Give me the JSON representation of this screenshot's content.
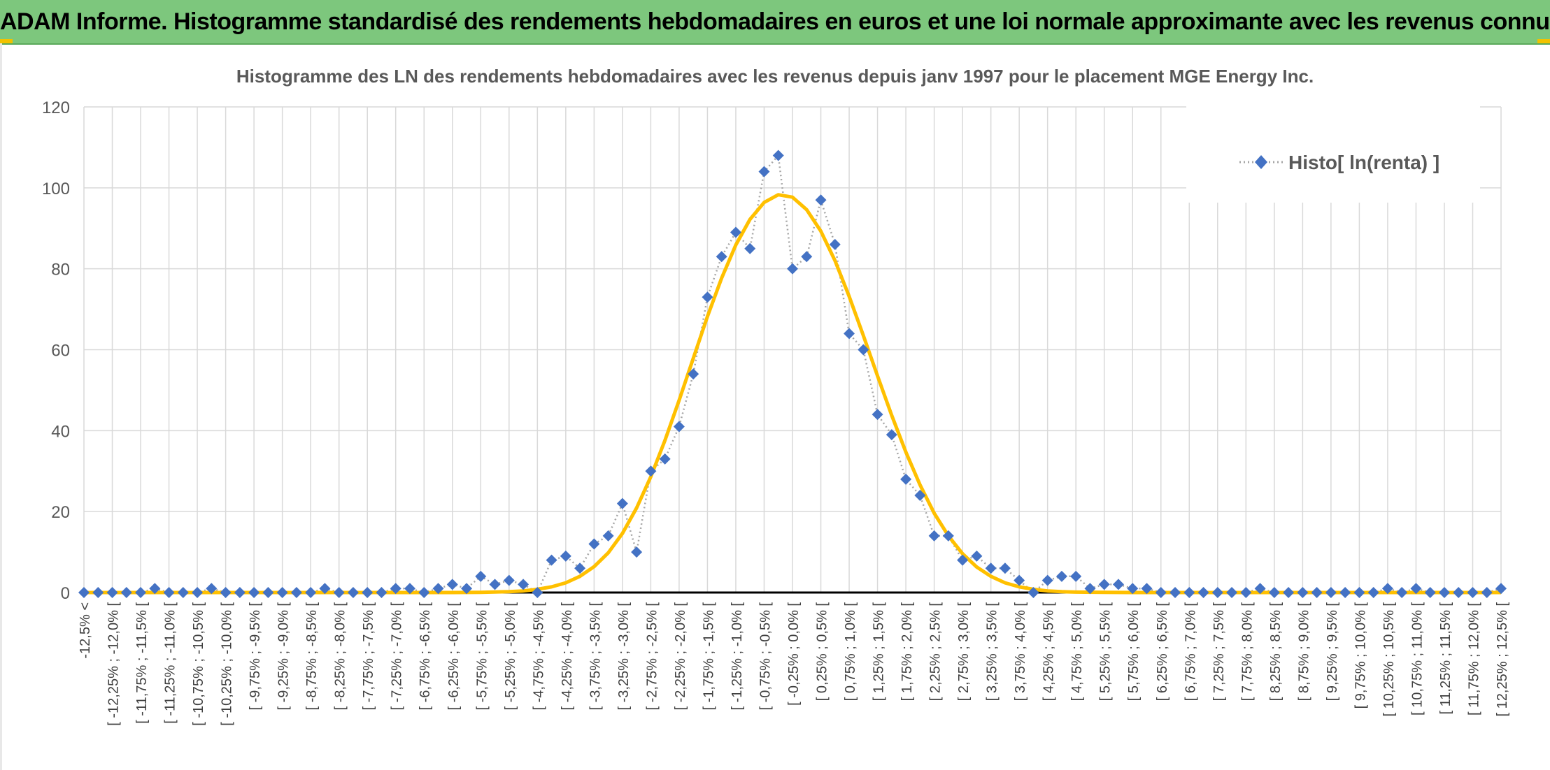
{
  "banner": {
    "title": "ADAM Informe. Histogramme standardisé des rendements hebdomadaires en euros et une loi normale approximante avec les revenus connus distribués"
  },
  "colors": {
    "banner_bg": "#7dc77d",
    "accent": "#f2c200",
    "series_marker": "#4472c4",
    "series_line": "#a6a6a6",
    "normal_curve": "#ffc000",
    "grid": "#d9d9d9"
  },
  "chart_data": {
    "type": "line",
    "title": "Histogramme des LN des rendements hebdomadaires avec les revenus depuis janv 1997 pour le placement MGE Energy Inc.",
    "xlabel": "",
    "ylabel": "",
    "ylim": [
      0,
      120
    ],
    "yticks": [
      0,
      20,
      40,
      60,
      80,
      100,
      120
    ],
    "grid": true,
    "legend": {
      "position": "top-right",
      "entries": [
        "Histo[ ln(renta) ]"
      ]
    },
    "categories": [
      "-12,5% <",
      "[ -12,25% ; -12,0% [",
      "[ -11,75% ; -11,5% [",
      "[ -11,25% ; -11,0% [",
      "[ -10,75% ; -10,5% [",
      "[ -10,25% ; -10,0% [",
      "[ -9,75% ; -9,5% [",
      "[ -9,25% ; -9,0% [",
      "[ -8,75% ; -8,5% [",
      "[ -8,25% ; -8,0% [",
      "[ -7,75% ; -7,5% [",
      "[ -7,25% ; -7,0% [",
      "[ -6,75% ; -6,5% [",
      "[ -6,25% ; -6,0% [",
      "[ -5,75% ; -5,5% [",
      "[ -5,25% ; -5,0% [",
      "[ -4,75% ; -4,5% [",
      "[ -4,25% ; -4,0% [",
      "[ -3,75% ; -3,5% [",
      "[ -3,25% ; -3,0% [",
      "[ -2,75% ; -2,5% [",
      "[ -2,25% ; -2,0% [",
      "[ -1,75% ; -1,5% [",
      "[ -1,25% ; -1,0% [",
      "[ -0,75% ; -0,5% [",
      "[ -0,25% ; 0,0% [",
      "[ 0,25% ; 0,5% [",
      "[ 0,75% ; 1,0% [",
      "[ 1,25% ; 1,5% [",
      "[ 1,75% ; 2,0% [",
      "[ 2,25% ; 2,5% [",
      "[ 2,75% ; 3,0% [",
      "[ 3,25% ; 3,5% [",
      "[ 3,75% ; 4,0% [",
      "[ 4,25% ; 4,5% [",
      "[ 4,75% ; 5,0% [",
      "[ 5,25% ; 5,5% [",
      "[ 5,75% ; 6,0% [",
      "[ 6,25% ; 6,5% [",
      "[ 6,75% ; 7,0% [",
      "[ 7,25% ; 7,5% [",
      "[ 7,75% ; 8,0% [",
      "[ 8,25% ; 8,5% [",
      "[ 8,75% ; 9,0% [",
      "[ 9,25% ; 9,5% [",
      "[ 9,75% ; 10,0% [",
      "[ 10,25% ; 10,5% [",
      "[ 10,75% ; 11,0% [",
      "[ 11,25% ; 11,5% [",
      "[ 11,75% ; 12,0% [",
      "[ 12,25% ; 12,5% ["
    ],
    "series": [
      {
        "name": "Histo[ ln(renta) ]",
        "marker": "diamond",
        "x": [
          -12.5,
          -12.25,
          -12.0,
          -11.75,
          -11.5,
          -11.25,
          -11.0,
          -10.75,
          -10.5,
          -10.25,
          -10.0,
          -9.75,
          -9.5,
          -9.25,
          -9.0,
          -8.75,
          -8.5,
          -8.25,
          -8.0,
          -7.75,
          -7.5,
          -7.25,
          -7.0,
          -6.75,
          -6.5,
          -6.25,
          -6.0,
          -5.75,
          -5.5,
          -5.25,
          -5.0,
          -4.75,
          -4.5,
          -4.25,
          -4.0,
          -3.75,
          -3.5,
          -3.25,
          -3.0,
          -2.75,
          -2.5,
          -2.25,
          -2.0,
          -1.75,
          -1.5,
          -1.25,
          -1.0,
          -0.75,
          -0.5,
          -0.25,
          0.0,
          0.25,
          0.5,
          0.75,
          1.0,
          1.25,
          1.5,
          1.75,
          2.0,
          2.25,
          2.5,
          2.75,
          3.0,
          3.25,
          3.5,
          3.75,
          4.0,
          4.25,
          4.5,
          4.75,
          5.0,
          5.25,
          5.5,
          5.75,
          6.0,
          6.25,
          6.5,
          6.75,
          7.0,
          7.25,
          7.5,
          7.75,
          8.0,
          8.25,
          8.5,
          8.75,
          9.0,
          9.25,
          9.5,
          9.75,
          10.0,
          10.25,
          10.5,
          10.75,
          11.0,
          11.25,
          11.5,
          11.75,
          12.0,
          12.25,
          12.5
        ],
        "y": [
          0,
          0,
          0,
          0,
          0,
          1,
          0,
          0,
          0,
          1,
          0,
          0,
          0,
          0,
          0,
          0,
          0,
          1,
          0,
          0,
          0,
          0,
          1,
          1,
          0,
          1,
          2,
          1,
          4,
          2,
          3,
          2,
          0,
          8,
          9,
          6,
          12,
          14,
          22,
          10,
          30,
          33,
          41,
          54,
          73,
          83,
          89,
          85,
          104,
          108,
          80,
          83,
          97,
          86,
          64,
          60,
          44,
          39,
          28,
          24,
          14,
          14,
          8,
          9,
          6,
          6,
          3,
          0,
          3,
          4,
          4,
          1,
          2,
          2,
          1,
          1,
          0,
          0,
          0,
          0,
          0,
          0,
          0,
          1,
          0,
          0,
          0,
          0,
          0,
          0,
          0,
          0,
          1,
          0,
          1,
          0,
          0,
          0,
          0,
          0,
          1
        ]
      },
      {
        "name": "",
        "type": "line",
        "x": [
          -12.5,
          -6.0,
          -5.5,
          -5.0,
          -4.75,
          -4.5,
          -4.25,
          -4.0,
          -3.75,
          -3.5,
          -3.25,
          -3.0,
          -2.75,
          -2.5,
          -2.25,
          -2.0,
          -1.75,
          -1.5,
          -1.25,
          -1.0,
          -0.75,
          -0.5,
          -0.25,
          0.0,
          0.25,
          0.5,
          0.75,
          1.0,
          1.25,
          1.5,
          1.75,
          2.0,
          2.25,
          2.5,
          2.75,
          3.0,
          3.25,
          3.5,
          3.75,
          4.0,
          4.25,
          4.5,
          4.75,
          5.0,
          5.5,
          6.0,
          12.5
        ],
        "y": [
          0,
          0,
          0.05,
          0.2,
          0.4,
          0.8,
          1.4,
          2.4,
          4.0,
          6.4,
          9.8,
          14.6,
          20.9,
          28.6,
          37.6,
          47.5,
          57.9,
          68.2,
          77.7,
          85.9,
          92.2,
          96.4,
          98.3,
          97.7,
          94.6,
          89.3,
          82.0,
          73.2,
          63.5,
          53.5,
          43.8,
          34.7,
          26.6,
          19.6,
          14.0,
          9.6,
          6.3,
          4.0,
          2.4,
          1.4,
          0.8,
          0.4,
          0.2,
          0.1,
          0.03,
          0,
          0
        ]
      }
    ]
  }
}
